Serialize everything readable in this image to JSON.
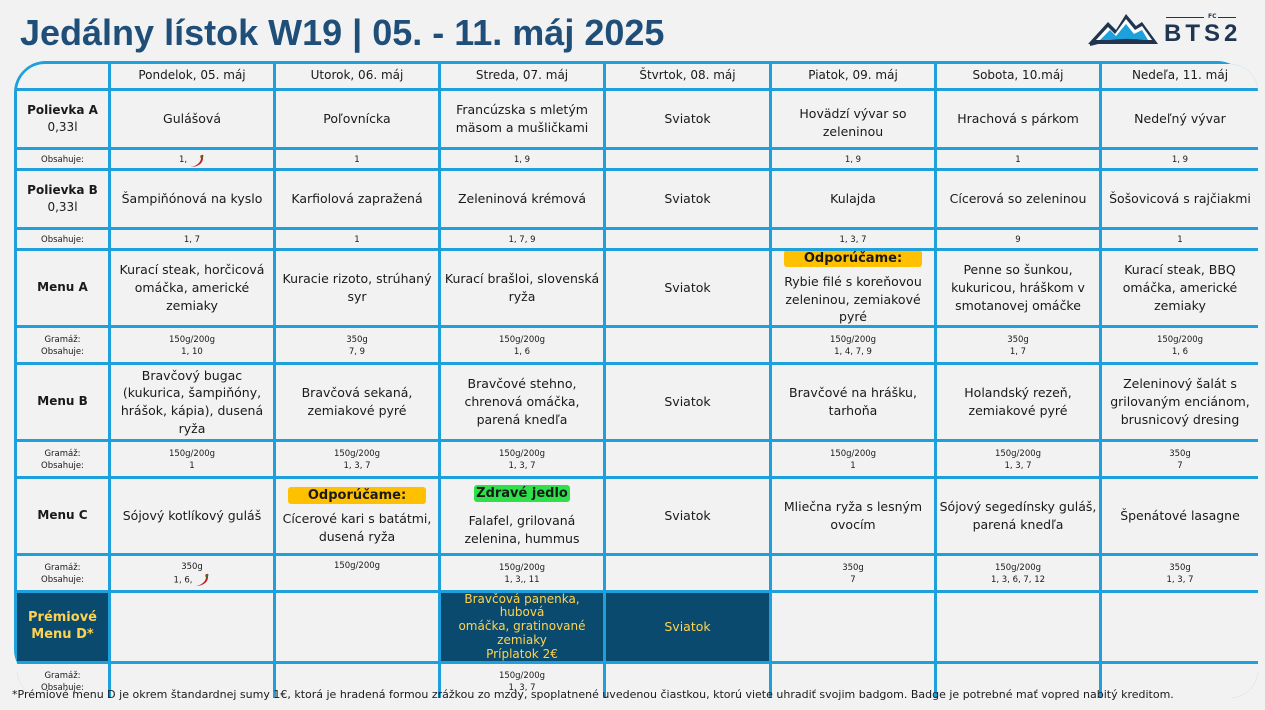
{
  "title": "Jedálny lístok W19 | 05. - 11. máj 2025",
  "logo": {
    "fc": "FC",
    "text": "BTS2"
  },
  "days": [
    "Pondelok, 05. máj",
    "Utorok, 06. máj",
    "Streda, 07. máj",
    "Štvrtok, 08. máj",
    "Piatok, 09. máj",
    "Sobota, 10.máj",
    "Nedeľa, 11. máj"
  ],
  "labels": {
    "contains": "Obsahuje:",
    "weight": "Gramáž:",
    "recommend": "Odporúčame:",
    "healthy": "Zdravé jedlo"
  },
  "soup_a": {
    "label": "Polievka A",
    "volume": "0,33l",
    "dishes": [
      "Gulášová",
      "Poľovnícka",
      "Francúzska s mletým mäsom a mušličkami",
      "Sviatok",
      "Hovädzí vývar so zeleninou",
      "Hrachová s párkom",
      "Nedeľný vývar"
    ],
    "allergens": [
      "1,",
      "1",
      "1, 9",
      "",
      "1, 9",
      "1",
      "1, 9"
    ]
  },
  "soup_b": {
    "label": "Polievka B",
    "volume": "0,33l",
    "dishes": [
      "Šampiňónová na kyslo",
      "Karfiolová zapražená",
      "Zeleninová krémová",
      "Sviatok",
      "Kulajda",
      "Cícerová so zeleninou",
      "Šošovicová s rajčiakmi"
    ],
    "allergens": [
      "1, 7",
      "1",
      "1, 7, 9",
      "",
      "1, 3, 7",
      "9",
      "1"
    ]
  },
  "menu_a": {
    "label": "Menu A",
    "dishes": [
      "Kurací steak, horčicová omáčka, americké zemiaky",
      "Kuracie rizoto, strúhaný syr",
      "Kurací brašloi, slovenská ryža",
      "Sviatok",
      "Rybie filé s koreňovou zeleninou, zemiakové pyré",
      "Penne so šunkou, kukuricou, hráškom v smotanovej omáčke",
      "Kurací steak, BBQ omáčka, americké zemiaky"
    ],
    "weights": [
      "150g/200g",
      "350g",
      "150g/200g",
      "",
      "150g/200g",
      "350g",
      "150g/200g"
    ],
    "allergens": [
      "1, 10",
      "7, 9",
      "1, 6",
      "",
      "1, 4, 7, 9",
      "1, 7",
      "1, 6"
    ]
  },
  "menu_b": {
    "label": "Menu B",
    "dishes": [
      "Bravčový bugac (kukurica, šampiňóny, hrášok, kápia), dusená ryža",
      "Bravčová sekaná, zemiakové pyré",
      "Bravčové stehno, chrenová omáčka, parená knedľa",
      "Sviatok",
      "Bravčové na hrášku, tarhoňa",
      "Holandský rezeň, zemiakové pyré",
      "Zeleninový šalát s grilovaným enciánom, brusnicový dresing"
    ],
    "weights": [
      "150g/200g",
      "150g/200g",
      "150g/200g",
      "",
      "150g/200g",
      "150g/200g",
      "350g"
    ],
    "allergens": [
      "1",
      "1, 3, 7",
      "1, 3, 7",
      "",
      "1",
      "1, 3, 7",
      "7"
    ]
  },
  "menu_c": {
    "label": "Menu C",
    "dishes": [
      "Sójový kotlíkový guláš",
      "Cícerové kari s batátmi, dusená ryža",
      "Falafel, grilovaná zelenina, hummus",
      "Sviatok",
      "Mliečna ryža s lesným ovocím",
      "Sójový segedínsky guláš, parená knedľa",
      "Špenátové lasagne"
    ],
    "weights": [
      "350g",
      "150g/200g",
      "150g/200g",
      "",
      "350g",
      "150g/200g",
      "350g"
    ],
    "allergens": [
      "1, 6,",
      "",
      "1, 3,, 11",
      "",
      "7",
      "1, 3,  6, 7, 12",
      "1, 3, 7"
    ]
  },
  "premium": {
    "label_line1": "Prémiové",
    "label_line2": "Menu D*",
    "dish_line1": "Bravčová panenka, hubová",
    "dish_line2": "omáčka, gratinované",
    "dish_line3": "zemiaky",
    "dish_line4": "Príplatok 2€",
    "holiday": "Sviatok",
    "weight": "150g/200g",
    "allergens": "1, 3, 7"
  },
  "footnote": "*Prémiové menu D je okrem štandardnej sumy 1€, ktorá je hradená formou zrážkou zo mzdy, spoplatnené uvedenou čiastkou, ktorú viete uhradiť svojim badgom. Badge je potrebné mať vopred nabitý kreditom.",
  "colors": {
    "title": "#1f4e79",
    "grid": "#1ea0dc",
    "premium_bg": "#0b4a6f",
    "premium_text": "#ffd34d",
    "recommend": "#ffc000",
    "healthy": "#2ee04a",
    "chili": "#c0231d"
  }
}
